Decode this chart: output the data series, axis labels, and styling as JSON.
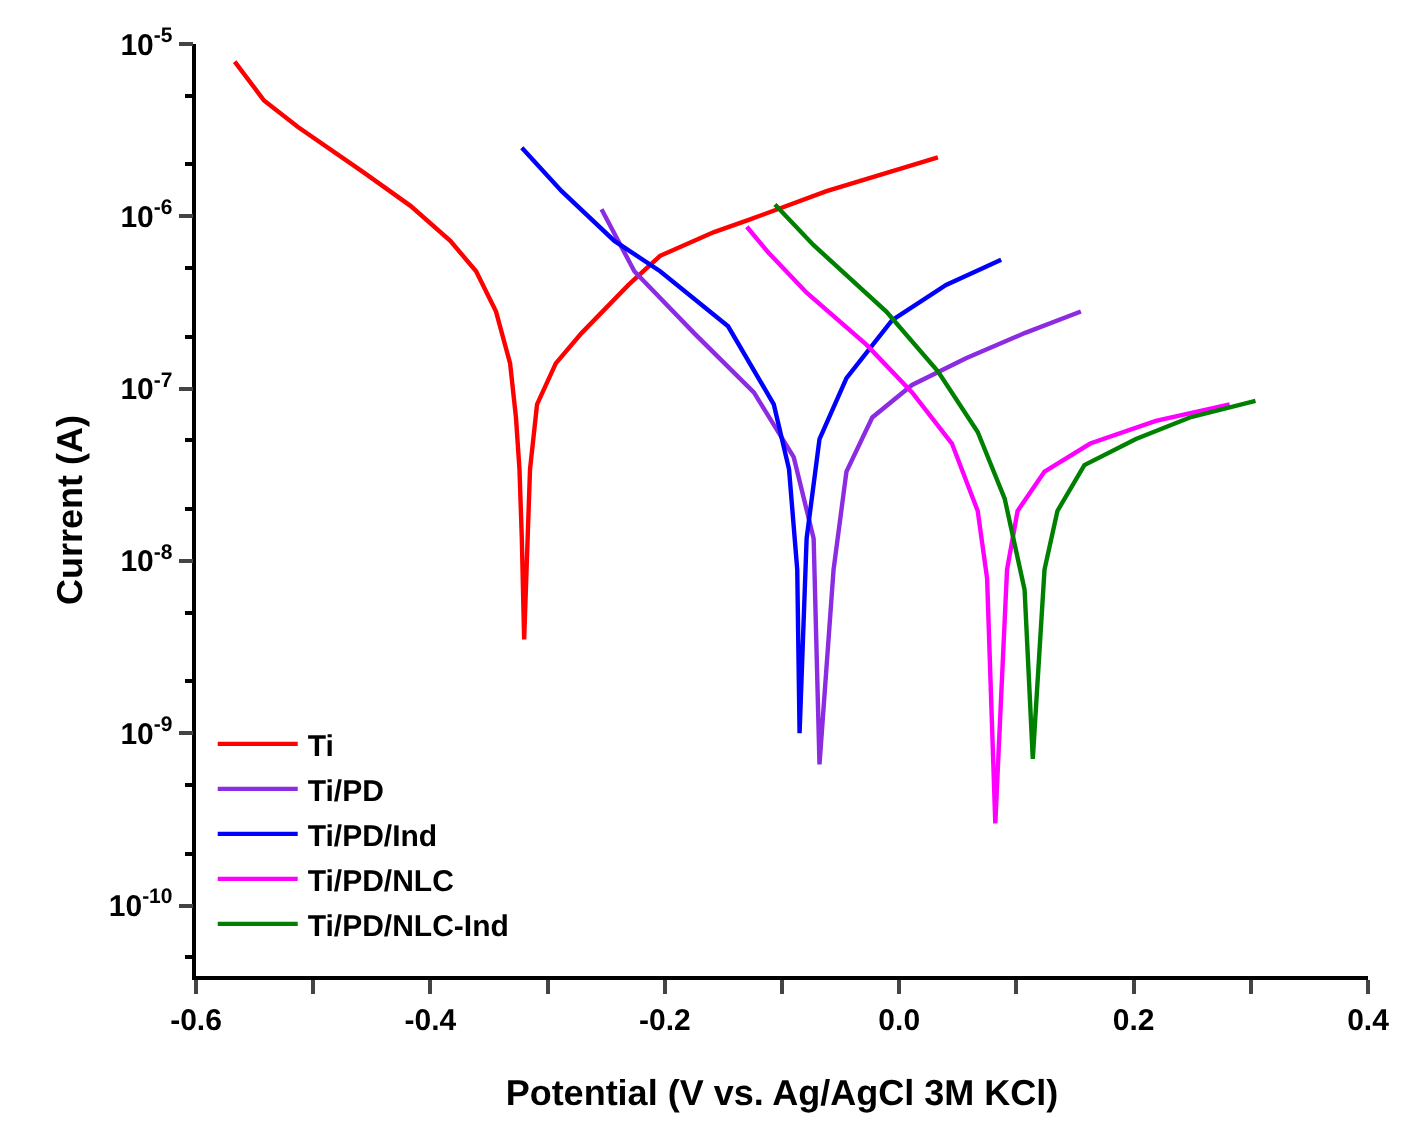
{
  "chart_data": {
    "type": "line",
    "xlabel": "Potential (V vs. Ag/AgCl 3M KCl)",
    "ylabel": "Current (A)",
    "log": "y",
    "legend": "bottom left",
    "marker": "none",
    "line_style": "solid",
    "xlim": [
      -0.6,
      0.4
    ],
    "ylim": [
      3.9e-11,
      1e-05
    ],
    "xticks": [
      -0.6,
      {
        "value": -0.5,
        "label": null
      },
      -0.4,
      {
        "value": -0.3,
        "label": null
      },
      -0.2,
      {
        "value": -0.1,
        "label": null
      },
      {
        "value": 0.0,
        "label": "0.0"
      },
      {
        "value": 0.1,
        "label": null
      },
      0.2,
      {
        "value": 0.3,
        "label": null
      },
      0.4
    ],
    "yticks": [
      {
        "value": 1e-10,
        "label": "10$^{-10}$"
      },
      {
        "value": 1e-09,
        "label": "10$^{-9}$"
      },
      {
        "value": 1e-08,
        "label": "10$^{-8}$"
      },
      {
        "value": 1e-07,
        "label": "10$^{-7}$"
      },
      {
        "value": 1e-06,
        "label": "10$^{-6}$"
      },
      {
        "value": 1e-05,
        "label": "10$^{-5}$"
      }
    ],
    "series": [
      {
        "name": "Ti",
        "color": "#ff0000",
        "x": [
          -0.567,
          -0.542,
          -0.513,
          -0.457,
          -0.417,
          -0.383,
          -0.361,
          -0.344,
          -0.332,
          -0.327,
          -0.324,
          -0.322,
          -0.32,
          -0.315,
          -0.309,
          -0.293,
          -0.271,
          -0.231,
          -0.204,
          -0.158,
          -0.129,
          -0.062,
          0.033
        ],
        "values": [
          7.9e-06,
          4.7e-06,
          3.3e-06,
          1.8e-06,
          1.15e-06,
          7.2e-07,
          4.8e-07,
          2.8e-07,
          1.4e-07,
          6.8e-08,
          3.4e-08,
          1.35e-08,
          3.5e-09,
          3.4e-08,
          8.1e-08,
          1.4e-07,
          2.1e-07,
          4e-07,
          5.9e-07,
          8.1e-07,
          9.5e-07,
          1.4e-06,
          2.2e-06
        ]
      },
      {
        "name": "Ti/PD",
        "color": "#8b2be2",
        "x": [
          -0.254,
          -0.226,
          -0.175,
          -0.124,
          -0.09,
          -0.073,
          -0.068,
          -0.056,
          -0.045,
          -0.023,
          0.011,
          0.057,
          0.107,
          0.155
        ],
        "values": [
          1.1e-06,
          4.8e-07,
          2.1e-07,
          9.5e-08,
          4e-08,
          1.35e-08,
          6.6e-10,
          8.9e-09,
          3.3e-08,
          6.8e-08,
          1.05e-07,
          1.5e-07,
          2.1e-07,
          2.8e-07
        ]
      },
      {
        "name": "Ti/PD/Ind",
        "color": "#0000ff",
        "x": [
          -0.322,
          -0.288,
          -0.243,
          -0.204,
          -0.146,
          -0.107,
          -0.094,
          -0.087,
          -0.085,
          -0.079,
          -0.068,
          -0.045,
          -0.006,
          0.04,
          0.087
        ],
        "values": [
          2.5e-06,
          1.4e-06,
          7.2e-07,
          4.8e-07,
          2.3e-07,
          8.1e-08,
          3.4e-08,
          8.9e-09,
          1e-09,
          1.35e-08,
          5.1e-08,
          1.15e-07,
          2.5e-07,
          4e-07,
          5.6e-07
        ]
      },
      {
        "name": "Ti/PD/NLC",
        "color": "#ff00ff",
        "x": [
          -0.13,
          -0.112,
          -0.079,
          -0.028,
          0.011,
          0.045,
          0.067,
          0.075,
          0.082,
          0.092,
          0.101,
          0.124,
          0.163,
          0.219,
          0.282
        ],
        "values": [
          8.7e-07,
          6.2e-07,
          3.6e-07,
          1.8e-07,
          9.5e-08,
          4.8e-08,
          1.95e-08,
          7.9e-09,
          3e-10,
          8.9e-09,
          1.95e-08,
          3.3e-08,
          4.8e-08,
          6.5e-08,
          8.1e-08
        ]
      },
      {
        "name": "Ti/PD/NLC-Ind",
        "color": "#008000",
        "x": [
          -0.106,
          -0.073,
          -0.011,
          0.033,
          0.067,
          0.09,
          0.107,
          0.114,
          0.124,
          0.135,
          0.158,
          0.202,
          0.248,
          0.304
        ],
        "values": [
          1.17e-06,
          6.8e-07,
          2.8e-07,
          1.26e-07,
          5.6e-08,
          2.3e-08,
          6.8e-09,
          7.1e-10,
          8.9e-09,
          1.95e-08,
          3.6e-08,
          5.1e-08,
          6.8e-08,
          8.5e-08
        ]
      }
    ]
  }
}
